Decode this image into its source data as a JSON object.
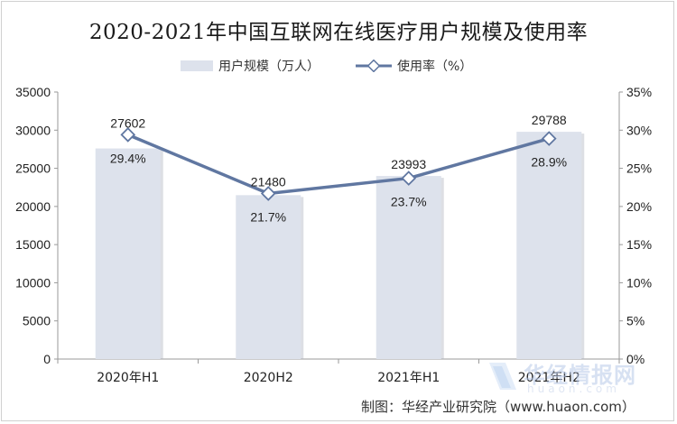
{
  "title": "2020-2021年中国互联网在线医疗用户规模及使用率",
  "footer": "制图：华经产业研究院（www.huaon.com）",
  "watermark": {
    "text": "华经情报网",
    "url": "huaon.com"
  },
  "colors": {
    "bar": "#dde2ec",
    "line": "#6077a1",
    "axis": "#9a9a9a",
    "text": "#222222"
  },
  "chart_data": {
    "type": "bar",
    "categories": [
      "2020年H1",
      "2020H2",
      "2021年H1",
      "2021年H2"
    ],
    "series": [
      {
        "name": "用户规模（万人）",
        "type": "bar",
        "axis": "left",
        "values": [
          27602,
          21480,
          23993,
          29788
        ]
      },
      {
        "name": "使用率（%）",
        "type": "line",
        "axis": "right",
        "values": [
          29.4,
          21.7,
          23.7,
          28.9
        ]
      }
    ],
    "y_left": {
      "min": 0,
      "max": 35000,
      "step": 5000,
      "ticks": [
        "0",
        "5000",
        "10000",
        "15000",
        "20000",
        "25000",
        "30000",
        "35000"
      ]
    },
    "y_right": {
      "min": 0,
      "max": 35,
      "step": 5,
      "ticks": [
        "0%",
        "5%",
        "10%",
        "15%",
        "20%",
        "25%",
        "30%",
        "35%"
      ]
    },
    "bar_labels": [
      "27602",
      "21480",
      "23993",
      "29788"
    ],
    "line_labels": [
      "29.4%",
      "21.7%",
      "23.7%",
      "28.9%"
    ],
    "legend_position": "top-center",
    "grid": false
  }
}
